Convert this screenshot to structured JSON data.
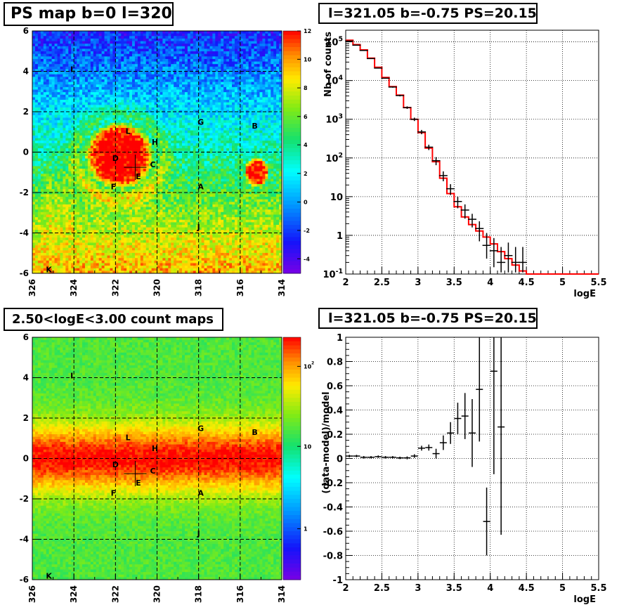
{
  "panels": {
    "tl": {
      "title": "PS map b=0 l=320"
    },
    "tr": {
      "title": "l=321.05 b=-0.75 PS=20.15"
    },
    "bl": {
      "title": "2.50<logE<3.00 count maps"
    },
    "br": {
      "title": "l=321.05 b=-0.75 PS=20.15"
    }
  },
  "colors": {
    "model_line": "#ff0000",
    "data_points": "#000000",
    "grid": "#000000"
  },
  "chart_data": [
    {
      "type": "heatmap",
      "title": "PS map b=0 l=320",
      "x_ticks": [
        "326",
        "324",
        "322",
        "320",
        "318",
        "316",
        "314"
      ],
      "y_ticks": [
        "6",
        "4",
        "2",
        "0",
        "-2",
        "-4",
        "-6"
      ],
      "xlim": [
        326,
        314
      ],
      "ylim": [
        -6,
        6
      ],
      "colorbar_ticks": [
        "12",
        "10",
        "8",
        "6",
        "4",
        "2",
        "0",
        "-2",
        "-4"
      ],
      "colorbar_range": [
        -5,
        12
      ],
      "grid": true,
      "source_labels": [
        {
          "name": "I",
          "l": 324.1,
          "b": 4.1
        },
        {
          "name": "L",
          "l": 321.4,
          "b": 1.05
        },
        {
          "name": "H",
          "l": 320.1,
          "b": 0.5
        },
        {
          "name": "D",
          "l": 322.0,
          "b": -0.3
        },
        {
          "name": "C",
          "l": 320.2,
          "b": -0.6
        },
        {
          "name": "E",
          "l": 320.9,
          "b": -1.2
        },
        {
          "name": "F",
          "l": 322.1,
          "b": -1.7
        },
        {
          "name": "G",
          "l": 317.9,
          "b": 1.5
        },
        {
          "name": "B",
          "l": 315.3,
          "b": 1.3
        },
        {
          "name": "A",
          "l": 317.9,
          "b": -1.7
        },
        {
          "name": "J",
          "l": 318.0,
          "b": -3.7
        },
        {
          "name": "K",
          "l": 325.2,
          "b": -5.8
        }
      ],
      "marker": {
        "l": 321.05,
        "b": -0.75
      }
    },
    {
      "type": "line",
      "title": "l=321.05 b=-0.75 PS=20.15",
      "xlabel": "logE",
      "ylabel": "Nb of counts",
      "x_ticks": [
        "2",
        "2.5",
        "3",
        "3.5",
        "4",
        "4.5",
        "5",
        "5.5"
      ],
      "y_ticks": [
        "10^{-1}",
        "1",
        "10",
        "10^{2}",
        "10^{3}",
        "10^{4}",
        "10^{5}"
      ],
      "xlim": [
        2,
        5.5
      ],
      "ylim": [
        0.1,
        200000
      ],
      "log_y": true,
      "grid": true,
      "series": [
        {
          "name": "",
          "style": "step",
          "bin_edges": [
            2.0,
            2.1,
            2.2,
            2.3,
            2.4,
            2.5,
            2.6,
            2.7,
            2.8,
            2.9,
            3.0,
            3.1,
            3.2,
            3.3,
            3.4,
            3.5,
            3.6,
            3.7,
            3.8,
            3.9,
            4.0,
            4.1,
            4.2,
            4.3,
            4.4,
            4.5,
            4.6,
            4.7,
            4.8,
            4.9,
            5.0,
            5.5
          ],
          "values": [
            110000,
            85000,
            62000,
            38000,
            22000,
            12000,
            7000,
            4200,
            2000,
            1000,
            450,
            180,
            80,
            30,
            12,
            5.5,
            3,
            1.9,
            1.3,
            0.9,
            0.6,
            0.38,
            0.25,
            0.17,
            0.12,
            0.1,
            0.1,
            0.1,
            0.1,
            0.1,
            0.1
          ]
        },
        {
          "name": "",
          "style": "points",
          "x": [
            2.05,
            2.15,
            2.25,
            2.35,
            2.45,
            2.55,
            2.65,
            2.75,
            2.85,
            2.95,
            3.05,
            3.15,
            3.25,
            3.35,
            3.45,
            3.55,
            3.65,
            3.75,
            3.85,
            3.95,
            4.05,
            4.15,
            4.25,
            4.35,
            4.45
          ],
          "y": [
            105000,
            82000,
            60000,
            37000,
            21000,
            11500,
            6800,
            4100,
            2000,
            1000,
            470,
            190,
            85,
            35,
            16,
            7.5,
            4.5,
            2.6,
            1.5,
            0.55,
            0.4,
            0.2,
            0.3,
            0.2,
            0.2
          ],
          "yerr_low": [
            1000,
            900,
            800,
            600,
            500,
            300,
            250,
            200,
            150,
            100,
            60,
            30,
            20,
            10,
            5,
            2.5,
            1.8,
            1,
            0.8,
            0.3,
            0.25,
            0.15,
            0.2,
            0.15,
            0.15
          ],
          "yerr_high": [
            1000,
            900,
            800,
            600,
            500,
            300,
            250,
            200,
            150,
            100,
            60,
            30,
            20,
            10,
            5,
            2.5,
            1.8,
            1,
            0.8,
            0.6,
            0.45,
            0.3,
            0.35,
            0.3,
            0.3
          ]
        }
      ]
    },
    {
      "type": "heatmap",
      "title": "2.50<logE<3.00 count maps",
      "x_ticks": [
        "326",
        "324",
        "322",
        "320",
        "318",
        "316",
        "314"
      ],
      "y_ticks": [
        "6",
        "4",
        "2",
        "0",
        "-2",
        "-4",
        "-6"
      ],
      "xlim": [
        326,
        314
      ],
      "ylim": [
        -6,
        6
      ],
      "colorbar_ticks": [
        "10^{2}",
        "10",
        "1"
      ],
      "colorbar_scale": "log",
      "grid": true,
      "source_labels": [
        {
          "name": "I",
          "l": 324.1,
          "b": 4.1
        },
        {
          "name": "L",
          "l": 321.4,
          "b": 1.05
        },
        {
          "name": "H",
          "l": 320.1,
          "b": 0.5
        },
        {
          "name": "D",
          "l": 322.0,
          "b": -0.3
        },
        {
          "name": "C",
          "l": 320.2,
          "b": -0.6
        },
        {
          "name": "E",
          "l": 320.9,
          "b": -1.2
        },
        {
          "name": "F",
          "l": 322.1,
          "b": -1.7
        },
        {
          "name": "G",
          "l": 317.9,
          "b": 1.5
        },
        {
          "name": "B",
          "l": 315.3,
          "b": 1.3
        },
        {
          "name": "A",
          "l": 317.9,
          "b": -1.7
        },
        {
          "name": "J",
          "l": 318.0,
          "b": -3.7
        },
        {
          "name": "K",
          "l": 325.2,
          "b": -5.8
        }
      ],
      "marker": {
        "l": 321.05,
        "b": -0.75
      }
    },
    {
      "type": "scatter",
      "title": "l=321.05 b=-0.75 PS=20.15",
      "xlabel": "logE",
      "ylabel": "(data-model)/model",
      "x_ticks": [
        "2",
        "2.5",
        "3",
        "3.5",
        "4",
        "4.5",
        "5",
        "5.5"
      ],
      "y_ticks": [
        "-1",
        "-0.8",
        "-0.6",
        "-0.4",
        "-0.2",
        "0",
        "0.2",
        "0.4",
        "0.6",
        "0.8",
        "1"
      ],
      "xlim": [
        2,
        5.5
      ],
      "ylim": [
        -1,
        1
      ],
      "grid": true,
      "series": [
        {
          "name": "",
          "x": [
            2.05,
            2.15,
            2.25,
            2.35,
            2.45,
            2.55,
            2.65,
            2.75,
            2.85,
            2.95,
            3.05,
            3.15,
            3.25,
            3.35,
            3.45,
            3.55,
            3.65,
            3.75,
            3.85,
            3.95,
            4.05,
            4.15
          ],
          "y": [
            0.02,
            0.02,
            0.01,
            0.01,
            0.015,
            0.01,
            0.01,
            0.005,
            0.005,
            0.02,
            0.085,
            0.09,
            0.04,
            0.13,
            0.21,
            0.33,
            0.35,
            0.21,
            0.57,
            -0.52,
            0.72,
            0.26
          ],
          "yerr": [
            0.01,
            0.01,
            0.01,
            0.01,
            0.01,
            0.01,
            0.01,
            0.01,
            0.012,
            0.015,
            0.02,
            0.025,
            0.04,
            0.06,
            0.09,
            0.13,
            0.19,
            0.28,
            0.43,
            0.28,
            0.85,
            0.89
          ]
        }
      ]
    }
  ]
}
